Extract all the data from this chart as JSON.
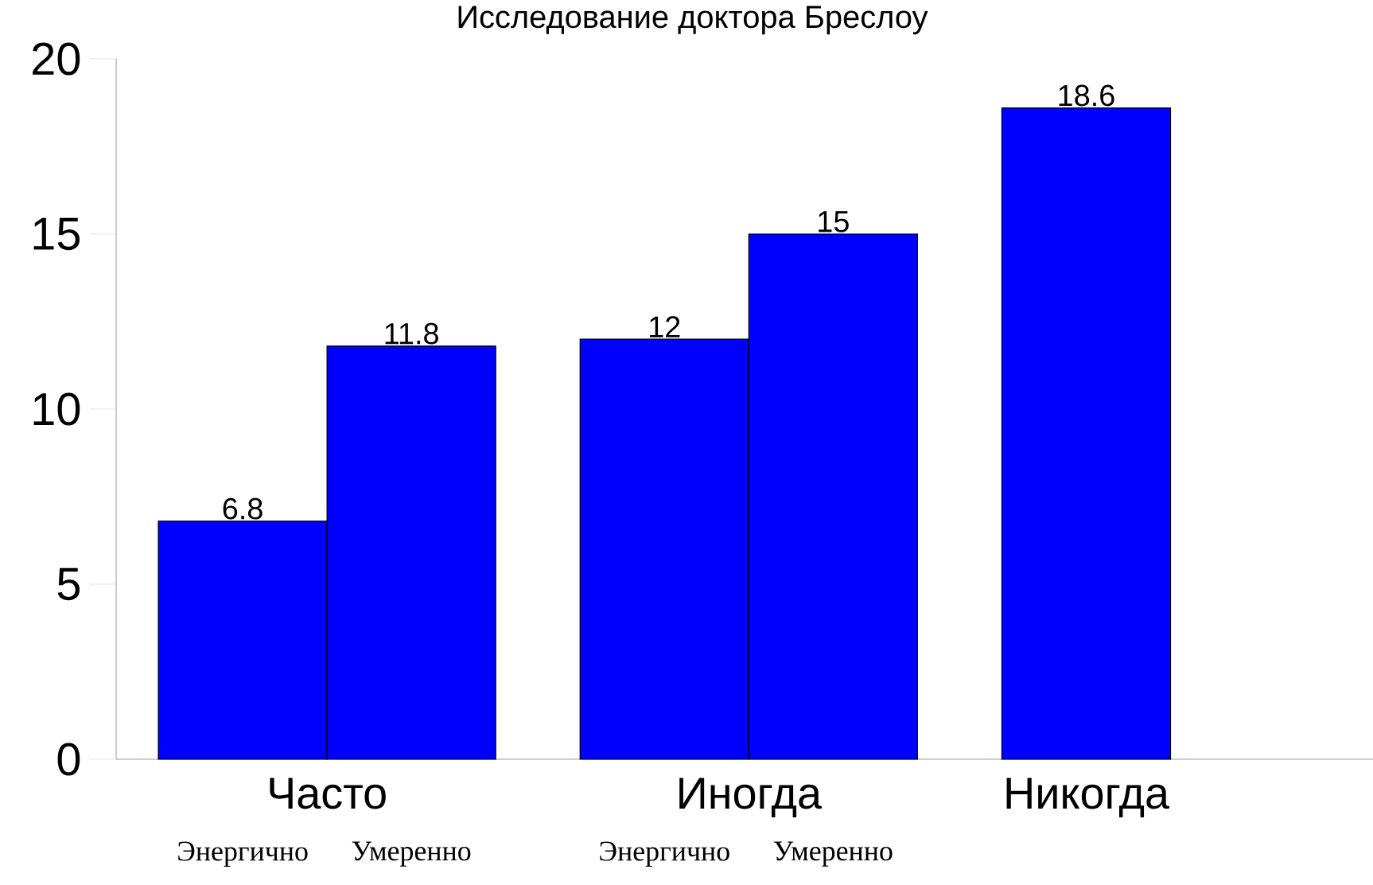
{
  "chart_data": {
    "type": "bar",
    "title": "Исследование доктора Бреслоу",
    "categories": [
      "Часто",
      "Иногда",
      "Никогда"
    ],
    "series": [
      {
        "name": "Энергично",
        "color": "#0000ff",
        "values": [
          6.8,
          12,
          18.6
        ]
      },
      {
        "name": "Умеренно",
        "color": "#0000ff",
        "values": [
          11.8,
          15,
          null
        ]
      }
    ],
    "ylim": [
      0,
      20
    ],
    "yticks": [
      0,
      5,
      10,
      15,
      20
    ],
    "data_labels": true
  }
}
